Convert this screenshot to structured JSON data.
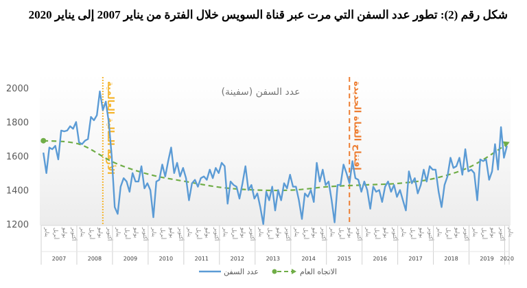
{
  "figure_title": "شكل رقم (2): تطور عدد السفن التي مرت عبر قناة السويس خلال الفترة من يناير 2007 إلى يناير 2020",
  "chart_data": {
    "type": "line",
    "title": "عدد السفن (سفينة)",
    "ylim": [
      1200,
      2000
    ],
    "yticks": [
      1200,
      1400,
      1600,
      1800,
      2000
    ],
    "years": [
      "2007",
      "2008",
      "2009",
      "2010",
      "2011",
      "2012",
      "2013",
      "2014",
      "2015",
      "2016",
      "2017",
      "2018",
      "2019",
      "2020"
    ],
    "month_labels": [
      "يناير",
      "أبريل",
      "يوليو",
      "أكتوبر"
    ],
    "x_start": "يناير 2007",
    "x_end": "يناير 2020",
    "series": [
      {
        "name": "عدد السفن",
        "color": "#5b9bd5",
        "frequency": "monthly",
        "values": [
          1620,
          1500,
          1650,
          1640,
          1660,
          1580,
          1750,
          1745,
          1750,
          1775,
          1760,
          1800,
          1680,
          1670,
          1690,
          1700,
          1830,
          1810,
          1840,
          1980,
          1870,
          1920,
          1800,
          1600,
          1300,
          1260,
          1420,
          1470,
          1450,
          1390,
          1500,
          1450,
          1450,
          1540,
          1410,
          1440,
          1400,
          1240,
          1450,
          1460,
          1550,
          1480,
          1570,
          1650,
          1500,
          1560,
          1480,
          1530,
          1470,
          1340,
          1440,
          1460,
          1420,
          1470,
          1480,
          1460,
          1520,
          1470,
          1530,
          1500,
          1560,
          1540,
          1320,
          1450,
          1430,
          1420,
          1350,
          1440,
          1540,
          1400,
          1430,
          1350,
          1380,
          1300,
          1200,
          1390,
          1340,
          1420,
          1280,
          1400,
          1340,
          1440,
          1410,
          1490,
          1420,
          1420,
          1340,
          1230,
          1380,
          1360,
          1400,
          1330,
          1560,
          1450,
          1520,
          1430,
          1450,
          1340,
          1210,
          1430,
          1430,
          1550,
          1500,
          1440,
          1570,
          1470,
          1460,
          1390,
          1450,
          1400,
          1290,
          1420,
          1390,
          1400,
          1330,
          1420,
          1450,
          1390,
          1430,
          1360,
          1400,
          1340,
          1280,
          1510,
          1440,
          1470,
          1380,
          1430,
          1520,
          1450,
          1540,
          1520,
          1520,
          1390,
          1300,
          1430,
          1480,
          1590,
          1530,
          1540,
          1590,
          1490,
          1640,
          1510,
          1520,
          1500,
          1340,
          1580,
          1570,
          1580,
          1460,
          1510,
          1670,
          1520,
          1770,
          1590,
          1660
        ]
      },
      {
        "name": "الاتجاه العام",
        "color": "#70ad47",
        "style": "dashed-arrow",
        "frequency": "yearly-january",
        "values": [
          1690,
          1670,
          1560,
          1490,
          1450,
          1415,
          1400,
          1400,
          1420,
          1430,
          1440,
          1470,
          1540,
          1670
        ]
      }
    ],
    "annotations": [
      {
        "text": "الأزمة المالية العالمية",
        "month_index": 20,
        "color": "#f5b52e",
        "style": "dotted"
      },
      {
        "text": "إفتتاح القناة الجديدة",
        "month_index": 103,
        "color": "#ed7d31",
        "style": "dashed"
      }
    ],
    "legend_position": "bottom",
    "grid": false
  }
}
